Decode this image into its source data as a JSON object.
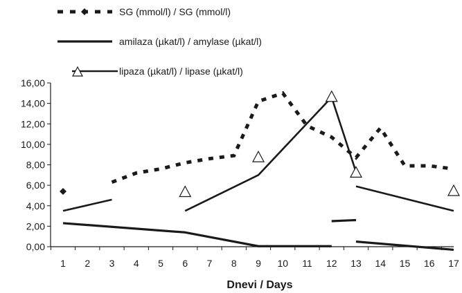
{
  "chart_data": {
    "type": "line",
    "title": "",
    "xlabel": "Dnevi / Days",
    "ylabel": "",
    "x": [
      1,
      2,
      3,
      4,
      5,
      6,
      7,
      8,
      9,
      10,
      11,
      12,
      13,
      14,
      15,
      16,
      17
    ],
    "x_tick_labels": [
      "1",
      "2",
      "3",
      "4",
      "5",
      "6",
      "7",
      "8",
      "9",
      "10",
      "11",
      "12",
      "13",
      "14",
      "15",
      "16",
      "17"
    ],
    "ylim": [
      0,
      16
    ],
    "y_ticks": [
      0,
      2,
      4,
      6,
      8,
      10,
      12,
      14,
      16
    ],
    "y_tick_labels": [
      "0,00",
      "2,00",
      "4,00",
      "6,00",
      "8,00",
      "10,00",
      "12,00",
      "14,00",
      "16,00"
    ],
    "grid": false,
    "legend_position": "top-left",
    "series": [
      {
        "name": "SG (mmol/l) / SG (mmol/l)",
        "style": "dotted-diamond",
        "color": "#1a1a1a",
        "segments": [
          [
            [
              1,
              5.4
            ]
          ],
          [
            [
              3,
              6.3
            ],
            [
              4,
              7.2
            ],
            [
              5,
              7.6
            ],
            [
              6,
              8.2
            ],
            [
              7,
              8.6
            ],
            [
              8,
              8.9
            ],
            [
              9,
              14.2
            ],
            [
              10,
              15.0
            ],
            [
              11,
              11.8
            ],
            [
              12,
              10.7
            ],
            [
              13,
              8.7
            ],
            [
              14,
              11.6
            ],
            [
              15,
              7.9
            ],
            [
              16,
              7.9
            ],
            [
              17,
              7.6
            ]
          ]
        ]
      },
      {
        "name": "amilaza (µkat/l) / amylase (µkat/l)",
        "style": "thick-solid",
        "color": "#1a1a1a",
        "segments": [
          [
            [
              1,
              2.3
            ],
            [
              6,
              1.4
            ],
            [
              9,
              0.05
            ],
            [
              12,
              0.05
            ]
          ],
          [
            [
              12,
              2.5
            ],
            [
              13,
              2.6
            ]
          ],
          [
            [
              13,
              0.5
            ],
            [
              17,
              -0.3
            ]
          ]
        ]
      },
      {
        "name": "lipaza (µkat/l) / lipase (µkat/l)",
        "style": "solid-triangle",
        "color": "#1a1a1a",
        "segments": [
          [
            [
              1,
              3.5
            ],
            [
              3,
              4.6
            ]
          ],
          [
            [
              6,
              3.5
            ],
            [
              9,
              7.0
            ],
            [
              12,
              14.6
            ],
            [
              13,
              7.3
            ]
          ],
          [
            [
              13,
              5.9
            ],
            [
              17,
              3.5
            ]
          ]
        ],
        "markers": [
          [
            6,
            5.3
          ],
          [
            9,
            8.7
          ],
          [
            12,
            14.6
          ],
          [
            13,
            7.2
          ],
          [
            17,
            5.4
          ]
        ]
      }
    ]
  }
}
